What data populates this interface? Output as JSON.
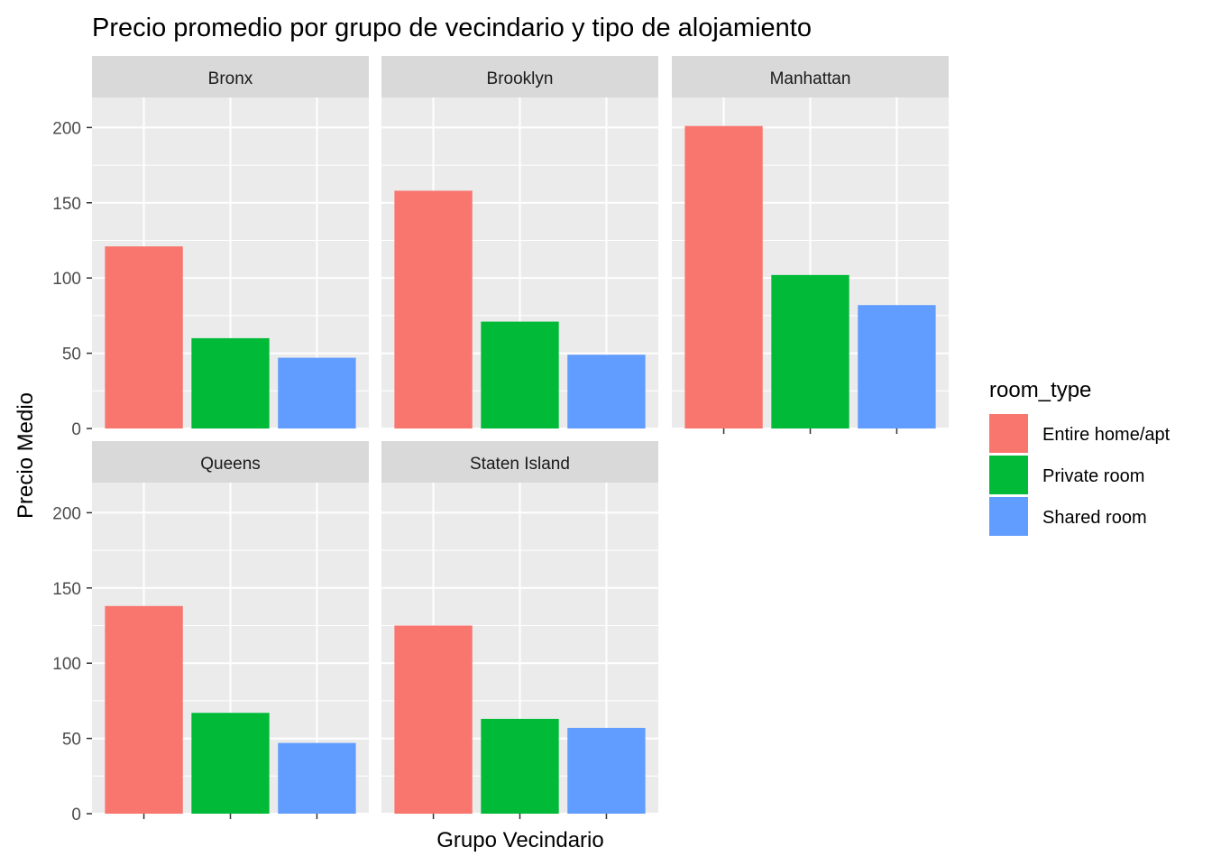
{
  "chart_data": {
    "type": "bar",
    "title": "Precio promedio por grupo de vecindario y tipo de alojamiento",
    "xlabel": "Grupo Vecindario",
    "ylabel": "Precio Medio",
    "ylim": [
      0,
      220
    ],
    "yticks": [
      0,
      50,
      100,
      150,
      200
    ],
    "grid": true,
    "legend": {
      "title": "room_type",
      "position": "right"
    },
    "series": [
      {
        "name": "Entire home/apt",
        "color": "#F8766D"
      },
      {
        "name": "Private room",
        "color": "#00BA38"
      },
      {
        "name": "Shared room",
        "color": "#619CFF"
      }
    ],
    "facets": [
      {
        "name": "Bronx",
        "values": [
          121,
          60,
          47
        ]
      },
      {
        "name": "Brooklyn",
        "values": [
          158,
          71,
          49
        ]
      },
      {
        "name": "Manhattan",
        "values": [
          201,
          102,
          82
        ]
      },
      {
        "name": "Queens",
        "values": [
          138,
          67,
          47
        ]
      },
      {
        "name": "Staten Island",
        "values": [
          125,
          63,
          57
        ]
      }
    ]
  }
}
